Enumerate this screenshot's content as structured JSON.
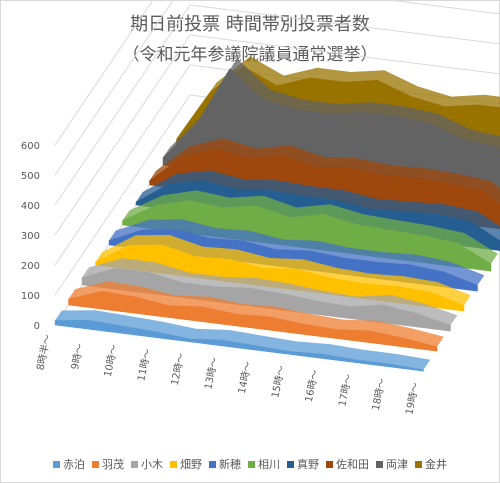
{
  "chart_data": {
    "type": "area",
    "title": "期日前投票 時間帯別投票者数",
    "subtitle": "（令和元年参議院議員通常選挙）",
    "categories": [
      "8時半～",
      "9時～",
      "10時～",
      "11時～",
      "12時～",
      "13時～",
      "14時～",
      "15時～",
      "16時～",
      "17時～",
      "18時～",
      "19時～"
    ],
    "y_ticks": [
      0,
      100,
      200,
      300,
      400,
      500,
      600
    ],
    "ylim": [
      0,
      600
    ],
    "grid": true,
    "legend_position": "bottom",
    "series": [
      {
        "name": "赤泊",
        "color": "#5b9bd5",
        "values": [
          15,
          30,
          25,
          20,
          10,
          20,
          15,
          10,
          15,
          10,
          10,
          5
        ]
      },
      {
        "name": "羽茂",
        "color": "#ed7d31",
        "values": [
          20,
          60,
          55,
          40,
          50,
          40,
          45,
          35,
          30,
          40,
          30,
          15
        ]
      },
      {
        "name": "小木",
        "color": "#a5a5a5",
        "values": [
          25,
          70,
          70,
          50,
          50,
          60,
          55,
          45,
          40,
          60,
          45,
          20
        ]
      },
      {
        "name": "畑野",
        "color": "#ffc000",
        "values": [
          10,
          80,
          95,
          70,
          75,
          60,
          70,
          55,
          50,
          55,
          50,
          20
        ]
      },
      {
        "name": "新穂",
        "color": "#4472c4",
        "values": [
          15,
          65,
          80,
          65,
          70,
          55,
          65,
          55,
          55,
          60,
          50,
          20
        ]
      },
      {
        "name": "相川",
        "color": "#70ad47",
        "values": [
          15,
          80,
          110,
          100,
          120,
          95,
          120,
          100,
          95,
          90,
          80,
          25
        ]
      },
      {
        "name": "真野",
        "color": "#255e91",
        "values": [
          10,
          85,
          110,
          95,
          105,
          100,
          100,
          85,
          90,
          95,
          85,
          25
        ]
      },
      {
        "name": "佐和田",
        "color": "#9e480e",
        "values": [
          15,
          110,
          150,
          130,
          155,
          130,
          140,
          130,
          135,
          130,
          120,
          30
        ]
      },
      {
        "name": "両津",
        "color": "#636363",
        "values": [
          25,
          150,
          350,
          260,
          240,
          240,
          260,
          260,
          250,
          210,
          200,
          40
        ]
      },
      {
        "name": "金井",
        "color": "#997300",
        "values": [
          20,
          190,
          290,
          240,
          280,
          280,
          300,
          260,
          240,
          260,
          260,
          130
        ]
      }
    ]
  },
  "legend": {
    "items": [
      "赤泊",
      "羽茂",
      "小木",
      "畑野",
      "新穂",
      "相川",
      "真野",
      "佐和田",
      "両津",
      "金井"
    ]
  }
}
